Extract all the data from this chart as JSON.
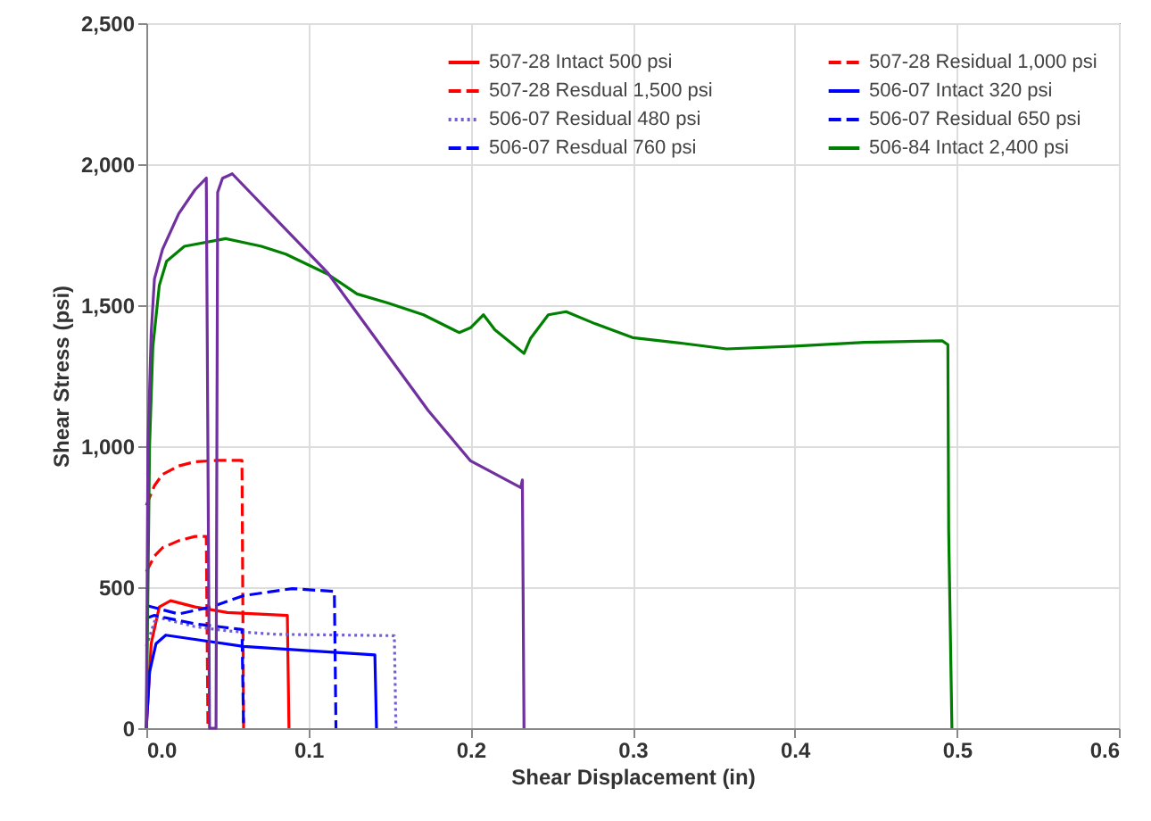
{
  "chart_data": {
    "type": "line",
    "xlabel": "Shear Displacement (in)",
    "ylabel": "Shear Stress (psi)",
    "xlim": [
      0,
      0.6
    ],
    "xticks": [
      {
        "value": 0,
        "label": "0.0"
      },
      {
        "value": 0.1,
        "label": "0.1"
      },
      {
        "value": 0.2,
        "label": "0.2"
      },
      {
        "value": 0.3,
        "label": "0.3"
      },
      {
        "value": 0.4,
        "label": "0.4"
      },
      {
        "value": 0.5,
        "label": "0.5"
      },
      {
        "value": 0.6,
        "label": "0.6"
      }
    ],
    "ylim": [
      0,
      2500
    ],
    "yticks": [
      0,
      500,
      {
        "value": 1000,
        "label": "1,000"
      },
      {
        "value": 1500,
        "label": "1,500"
      },
      {
        "value": 2000,
        "label": "2,000"
      },
      {
        "value": 2500,
        "label": "2,500"
      }
    ],
    "grid": true,
    "legend": "top right",
    "marker": "none",
    "series": [
      {
        "name": "507-28 Intact 500 psi",
        "color": "#ff0000",
        "line_style": "solid",
        "x": [
          0,
          0.003,
          0.008,
          0.015,
          0.03,
          0.05,
          0.087,
          0.088
        ],
        "values": [
          0,
          300,
          430,
          452,
          430,
          410,
          400,
          0
        ]
      },
      {
        "name": "507-28 Residual 1,000 psi",
        "color": "#ff0000",
        "line_style": "dashed",
        "x": [
          0,
          0.005,
          0.01,
          0.02,
          0.03,
          0.037,
          0.038
        ],
        "values": [
          555,
          610,
          640,
          665,
          680,
          680,
          0
        ]
      },
      {
        "name": "507-28 Resdual 1,500 psi",
        "color": "#ff0000",
        "line_style": "dashed",
        "x": [
          0,
          0.005,
          0.01,
          0.02,
          0.03,
          0.045,
          0.059,
          0.06
        ],
        "values": [
          790,
          860,
          900,
          930,
          945,
          950,
          950,
          0
        ]
      },
      {
        "name": "506-07 Intact 320 psi",
        "color": "#0000ff",
        "line_style": "solid",
        "x": [
          0,
          0.002,
          0.006,
          0.012,
          0.03,
          0.06,
          0.1,
          0.141,
          0.142
        ],
        "values": [
          0,
          200,
          300,
          330,
          315,
          290,
          275,
          260,
          0
        ]
      },
      {
        "name": "506-07 Residual 480 psi",
        "color": "#6f5fd6",
        "line_style": "dotted",
        "x": [
          0,
          0.006,
          0.03,
          0.05,
          0.08,
          0.153,
          0.154
        ],
        "values": [
          290,
          395,
          360,
          345,
          333,
          328,
          0
        ]
      },
      {
        "name": "506-07 Residual 650 psi",
        "color": "#0000ff",
        "line_style": "dashed",
        "x": [
          0,
          0.005,
          0.03,
          0.045,
          0.059,
          0.06
        ],
        "values": [
          390,
          400,
          370,
          360,
          350,
          0
        ]
      },
      {
        "name": "506-07 Resdual 760 psi",
        "color": "#0000ff",
        "line_style": "dashed",
        "x": [
          0,
          0.02,
          0.04,
          0.06,
          0.09,
          0.116,
          0.117
        ],
        "values": [
          435,
          405,
          430,
          470,
          495,
          485,
          0
        ]
      },
      {
        "name": "506-84 Intact 2,400 psi",
        "color": "#008000",
        "line_style": "solid",
        "x": [
          0,
          0.002,
          0.004,
          0.008,
          0.0125,
          0.0235,
          0.049,
          0.071,
          0.086,
          0.112,
          0.13,
          0.149,
          0.171,
          0.193,
          0.2,
          0.208,
          0.215,
          0.233,
          0.237,
          0.248,
          0.259,
          0.277,
          0.3,
          0.332,
          0.358,
          0.4,
          0.443,
          0.491,
          0.4945,
          0.495,
          0.497
        ],
        "values": [
          0,
          1000,
          1350,
          1570,
          1656,
          1709,
          1736,
          1709,
          1681,
          1610,
          1540,
          1508,
          1466,
          1403,
          1420,
          1466,
          1413,
          1329,
          1382,
          1466,
          1477,
          1434,
          1385,
          1364,
          1345,
          1355,
          1368,
          1374,
          1360,
          700,
          0
        ]
      },
      {
        "color": "#7030a0",
        "line_style": "solid",
        "x": [
          0,
          0.001,
          0.003,
          0.005,
          0.01,
          0.02,
          0.03,
          0.037,
          0.039,
          0.043,
          0.044,
          0.047,
          0.053,
          0.112,
          0.174,
          0.2,
          0.231,
          0.232,
          0.233
        ],
        "values": [
          0,
          1000,
          1400,
          1593,
          1698,
          1825,
          1909,
          1951,
          0,
          0,
          1900,
          1950,
          1966,
          1614,
          1126,
          948,
          853,
          880,
          0
        ]
      }
    ]
  }
}
